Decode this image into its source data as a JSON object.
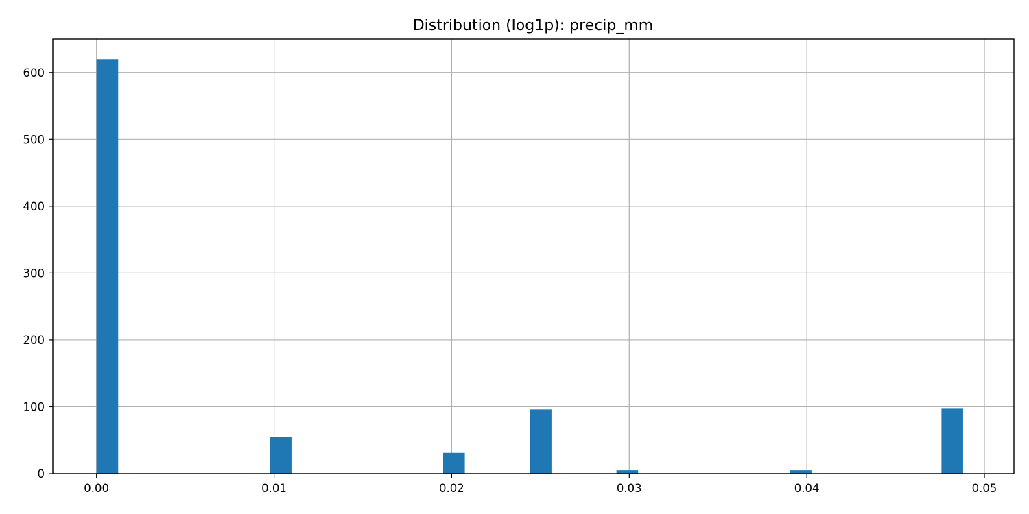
{
  "chart_data": {
    "type": "bar",
    "title": "Distribution (log1p): precip_mm",
    "xlabel": "",
    "ylabel": "",
    "bar_color": "#1f77b4",
    "grid": true,
    "xlim": [
      -0.00246,
      0.05166
    ],
    "ylim": [
      0,
      650
    ],
    "x_ticks": [
      {
        "value": 0.0,
        "label": "0.00"
      },
      {
        "value": 0.01,
        "label": "0.01"
      },
      {
        "value": 0.02,
        "label": "0.02"
      },
      {
        "value": 0.03,
        "label": "0.03"
      },
      {
        "value": 0.04,
        "label": "0.04"
      },
      {
        "value": 0.05,
        "label": "0.05"
      }
    ],
    "y_ticks": [
      {
        "value": 0,
        "label": "0"
      },
      {
        "value": 100,
        "label": "100"
      },
      {
        "value": 200,
        "label": "200"
      },
      {
        "value": 300,
        "label": "300"
      },
      {
        "value": 400,
        "label": "400"
      },
      {
        "value": 500,
        "label": "500"
      },
      {
        "value": 600,
        "label": "600"
      }
    ],
    "bins": [
      {
        "start": 0.0,
        "end": 0.00122,
        "count": 620
      },
      {
        "start": 0.00976,
        "end": 0.01098,
        "count": 55
      },
      {
        "start": 0.01952,
        "end": 0.02074,
        "count": 31
      },
      {
        "start": 0.0244,
        "end": 0.02562,
        "count": 96
      },
      {
        "start": 0.02928,
        "end": 0.0305,
        "count": 5
      },
      {
        "start": 0.03904,
        "end": 0.04026,
        "count": 5
      },
      {
        "start": 0.04758,
        "end": 0.0488,
        "count": 97
      }
    ]
  }
}
